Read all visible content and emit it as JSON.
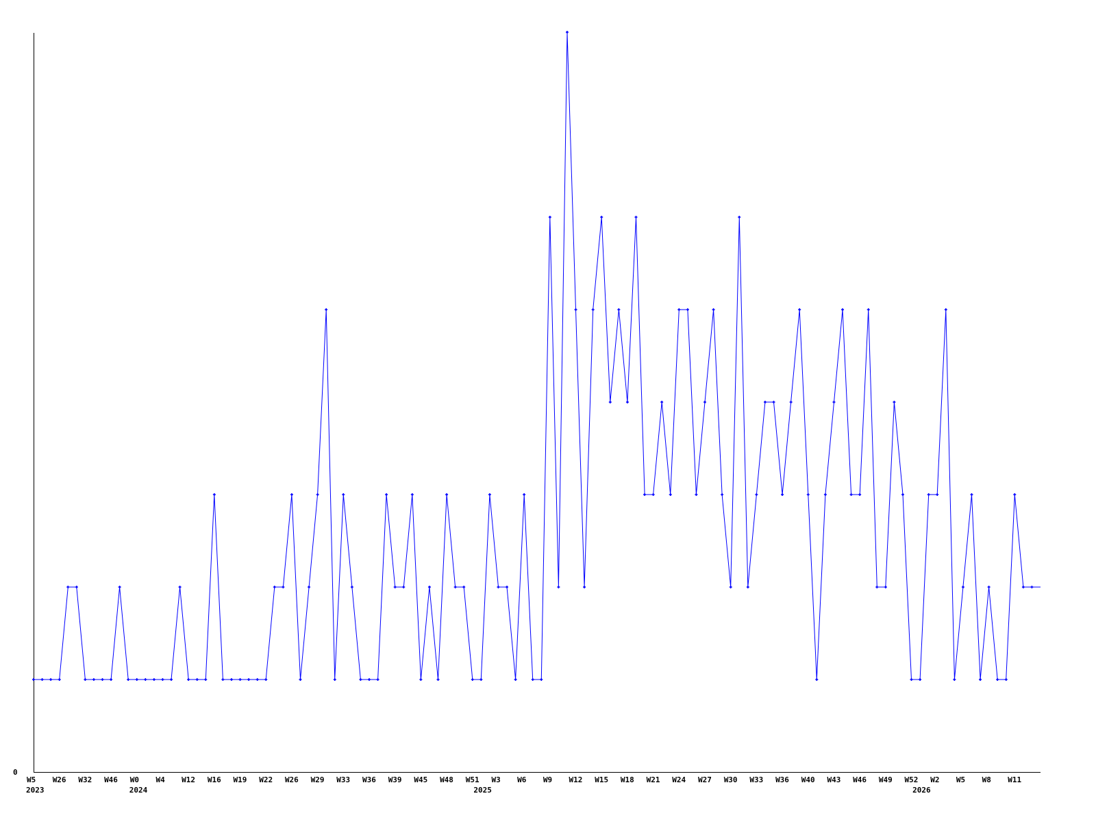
{
  "chart_data": {
    "type": "line",
    "title": "",
    "xlabel": "",
    "ylabel": "",
    "ylim": [
      0,
      8
    ],
    "y_tick_labels": [
      "0"
    ],
    "grid": false,
    "line_color": "#0000ff",
    "axis_color": "#000000",
    "x_tick_labels": [
      "W5",
      "W26",
      "W32",
      "W46",
      "W0",
      "W4",
      "W12",
      "W16",
      "W19",
      "W22",
      "W26",
      "W29",
      "W33",
      "W36",
      "W39",
      "W45",
      "W48",
      "W51",
      "W3",
      "W6",
      "W9",
      "W12",
      "W15",
      "W18",
      "W21",
      "W24",
      "W27",
      "W30",
      "W33",
      "W36",
      "W40",
      "W43",
      "W46",
      "W49",
      "W52",
      "W2",
      "W5",
      "W8",
      "W11"
    ],
    "year_labels": [
      {
        "label": "2023",
        "point_index": 0
      },
      {
        "label": "2024",
        "point_index": 12
      },
      {
        "label": "2025",
        "point_index": 52
      },
      {
        "label": "2026",
        "point_index": 103
      }
    ],
    "x_tick_every_n_points": 3,
    "values": [
      1,
      1,
      1,
      1,
      2,
      2,
      1,
      1,
      1,
      1,
      2,
      1,
      1,
      1,
      1,
      1,
      1,
      2,
      1,
      1,
      1,
      3,
      1,
      1,
      1,
      1,
      1,
      1,
      2,
      2,
      3,
      1,
      2,
      3,
      5,
      1,
      3,
      2,
      1,
      1,
      1,
      3,
      2,
      2,
      3,
      1,
      2,
      1,
      3,
      2,
      2,
      1,
      1,
      3,
      2,
      2,
      1,
      3,
      1,
      1,
      6,
      2,
      8,
      5,
      2,
      5,
      6,
      4,
      5,
      4,
      6,
      3,
      3,
      4,
      3,
      5,
      5,
      3,
      4,
      5,
      3,
      2,
      6,
      2,
      3,
      4,
      4,
      3,
      4,
      5,
      3,
      1,
      3,
      4,
      5,
      3,
      3,
      5,
      2,
      2,
      4,
      3,
      1,
      1,
      3,
      3,
      5,
      1,
      2,
      3,
      1,
      2,
      1,
      1,
      3,
      2,
      2,
      2
    ]
  }
}
